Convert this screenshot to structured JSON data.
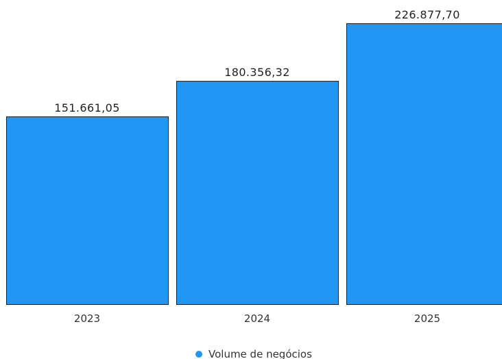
{
  "chart_data": {
    "type": "bar",
    "categories": [
      "2023",
      "2024",
      "2025"
    ],
    "series": [
      {
        "name": "Volume de negócios",
        "values": [
          151661.05,
          180356.32,
          226877.7
        ],
        "value_labels": [
          "151.661,05",
          "180.356,32",
          "226.877,70"
        ],
        "color": "#2196F3"
      }
    ],
    "title": "",
    "xlabel": "",
    "ylabel": "",
    "ylim": [
      0,
      226877.7
    ],
    "grid": false,
    "legend": "bottom"
  },
  "colors": {
    "bar_fill": "#2196F3",
    "bar_stroke": "#1b1b1b",
    "legend_marker": "#2196F3"
  }
}
